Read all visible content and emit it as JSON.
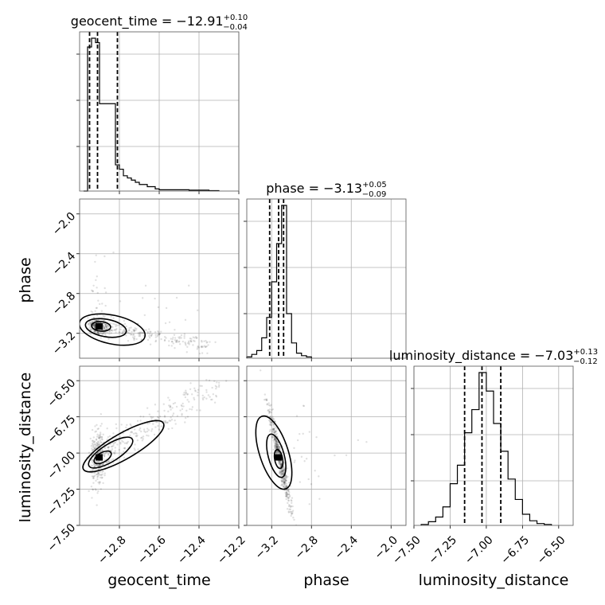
{
  "chart_data": {
    "type": "corner",
    "parameters": [
      "geocent_time",
      "phase",
      "luminosity_distance"
    ],
    "axis_labels": {
      "bottom": [
        "geocent_time",
        "phase",
        "luminosity_distance"
      ],
      "left": [
        "phase",
        "luminosity_distance"
      ]
    },
    "ranges": {
      "geocent_time": [
        -13.0,
        -12.2
      ],
      "phase": [
        -3.45,
        -1.85
      ],
      "luminosity_distance": [
        -7.5,
        -6.4
      ]
    },
    "ticks": {
      "geocent_time": [
        -12.8,
        -12.6,
        -12.4,
        -12.2
      ],
      "phase": [
        -3.2,
        -2.8,
        -2.4,
        -2.0
      ],
      "luminosity_distance_x": [
        -7.5,
        -7.25,
        -7.0,
        -6.75,
        -6.5
      ],
      "luminosity_distance_y": [
        -7.5,
        -7.25,
        -7.0,
        -6.75,
        -6.5
      ]
    },
    "tick_labels": {
      "geocent_time": [
        "−12.8",
        "−12.6",
        "−12.4",
        "−12.2"
      ],
      "phase": [
        "−3.2",
        "−2.8",
        "−2.4",
        "−2.0"
      ],
      "luminosity_distance_x": [
        "−7.50",
        "−7.25",
        "−7.00",
        "−6.75",
        "−6.50"
      ],
      "luminosity_distance_y": [
        "−7.50",
        "−7.25",
        "−7.00",
        "−6.75",
        "−6.50"
      ]
    },
    "titles": [
      {
        "param": "geocent_time",
        "main": "geocent_time = −12.91",
        "sup": "+0.10",
        "sub": "−0.04"
      },
      {
        "param": "phase",
        "main": "phase = −3.13",
        "sup": "+0.05",
        "sub": "−0.09"
      },
      {
        "param": "luminosity_distance",
        "main": "luminosity_distance = −7.03",
        "sup": "+0.13",
        "sub": "−0.12"
      }
    ],
    "histograms": {
      "geocent_time": {
        "edges": [
          -12.98,
          -12.96,
          -12.94,
          -12.92,
          -12.9,
          -12.88,
          -12.86,
          -12.84,
          -12.82,
          -12.8,
          -12.78,
          -12.76,
          -12.74,
          -12.72,
          -12.7,
          -12.68,
          -12.66,
          -12.64,
          -12.62,
          -12.6,
          -12.55,
          -12.5,
          -12.45,
          -12.4,
          -12.35,
          -12.3
        ],
        "counts": [
          0,
          33,
          35,
          34,
          20,
          20,
          20,
          20,
          6,
          5,
          3.5,
          3,
          2.5,
          2,
          1.5,
          1.5,
          1,
          1,
          0.5,
          0.3,
          0.3,
          0.3,
          0.2,
          0.2,
          0.1
        ],
        "quantiles": [
          -12.95,
          -12.91,
          -12.81
        ]
      },
      "phase": {
        "edges": [
          -3.45,
          -3.4,
          -3.35,
          -3.3,
          -3.25,
          -3.2,
          -3.15,
          -3.1,
          -3.05,
          -3.0,
          -2.95,
          -2.9,
          -2.85,
          -2.8
        ],
        "counts": [
          1,
          3,
          6,
          16,
          32,
          60,
          90,
          120,
          35,
          12,
          4,
          2,
          1
        ],
        "quantiles": [
          -3.22,
          -3.13,
          -3.08
        ]
      },
      "luminosity_distance": {
        "edges": [
          -7.45,
          -7.4,
          -7.35,
          -7.3,
          -7.25,
          -7.2,
          -7.15,
          -7.1,
          -7.05,
          -7.0,
          -6.95,
          -6.9,
          -6.85,
          -6.8,
          -6.75,
          -6.7,
          -6.65,
          -6.6,
          -6.55
        ],
        "counts": [
          1,
          4,
          9,
          20,
          45,
          65,
          100,
          125,
          165,
          145,
          110,
          80,
          50,
          28,
          12,
          5,
          2,
          1
        ],
        "quantiles": [
          -7.15,
          -7.03,
          -6.9
        ]
      }
    },
    "joint": {
      "phase_vs_geocent_time": {
        "center": [
          -12.9,
          -3.13
        ],
        "trend": "negative"
      },
      "luminosity_distance_vs_geocent_time": {
        "center": [
          -12.9,
          -7.03
        ],
        "trend": "positive"
      },
      "luminosity_distance_vs_phase": {
        "center": [
          -3.13,
          -7.03
        ],
        "trend": "negative"
      }
    },
    "grid": true,
    "legend": "none",
    "colors": {
      "lines": "#000000",
      "grid": "#b0b0b0",
      "points": "#000000"
    }
  }
}
